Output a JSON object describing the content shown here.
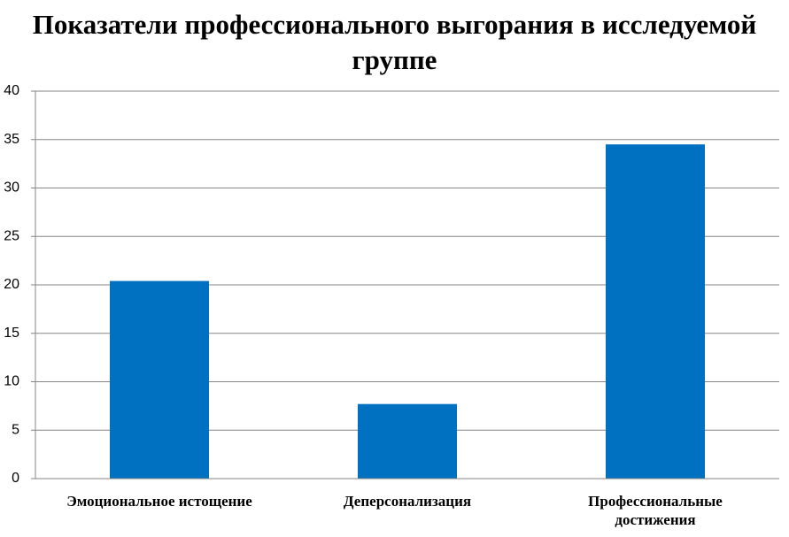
{
  "chart_data": {
    "type": "bar",
    "title": "Показатели профессионального выгорания в исследуемой группе",
    "categories": [
      "Эмоциональное истощение",
      "Деперсонализация",
      "Профессиональные достижения"
    ],
    "values": [
      20.4,
      7.7,
      34.5
    ],
    "color": "#0070c0",
    "ylim": [
      0,
      40
    ],
    "yticks": [
      0,
      5,
      10,
      15,
      20,
      25,
      30,
      35,
      40
    ],
    "grid": true
  }
}
